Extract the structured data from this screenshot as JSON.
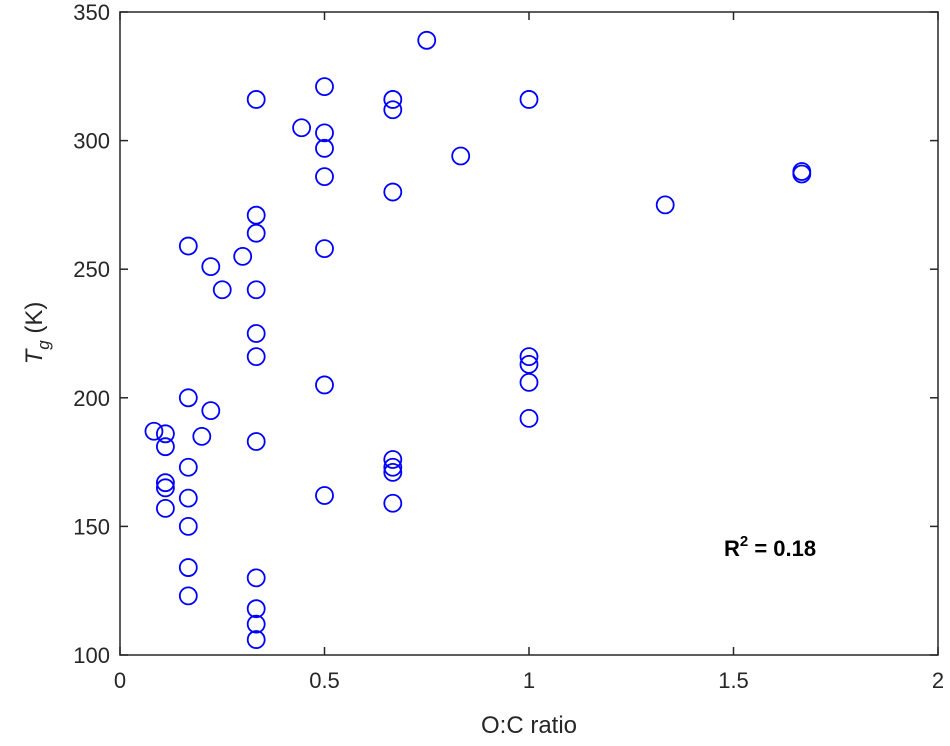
{
  "chart_data": {
    "type": "scatter",
    "title": "",
    "xlabel": "O:C ratio",
    "ylabel": {
      "main": "T",
      "sub": "g",
      "unit": " (K)"
    },
    "xlim": [
      0,
      2
    ],
    "ylim": [
      100,
      350
    ],
    "xticks": [
      0,
      0.5,
      1,
      1.5,
      2
    ],
    "xtick_labels": [
      "0",
      "0.5",
      "1",
      "1.5",
      "2"
    ],
    "yticks": [
      100,
      150,
      200,
      250,
      300,
      350
    ],
    "ytick_labels": [
      "100",
      "150",
      "200",
      "250",
      "300",
      "350"
    ],
    "grid": false,
    "legend": "none",
    "marker": "open-circle",
    "marker_color": "#0000ff",
    "annotation": {
      "base": "R",
      "sup": "2",
      "rest": " = 0.18"
    },
    "series": [
      {
        "points": [
          [
            0.083,
            187
          ],
          [
            0.111,
            186
          ],
          [
            0.111,
            181
          ],
          [
            0.111,
            167
          ],
          [
            0.111,
            165
          ],
          [
            0.111,
            157
          ],
          [
            0.167,
            259
          ],
          [
            0.167,
            200
          ],
          [
            0.167,
            173
          ],
          [
            0.167,
            161
          ],
          [
            0.167,
            150
          ],
          [
            0.167,
            134
          ],
          [
            0.167,
            123
          ],
          [
            0.2,
            185
          ],
          [
            0.222,
            195
          ],
          [
            0.222,
            251
          ],
          [
            0.25,
            242
          ],
          [
            0.3,
            255
          ],
          [
            0.333,
            316
          ],
          [
            0.333,
            271
          ],
          [
            0.333,
            264
          ],
          [
            0.333,
            242
          ],
          [
            0.333,
            225
          ],
          [
            0.333,
            216
          ],
          [
            0.333,
            183
          ],
          [
            0.333,
            130
          ],
          [
            0.333,
            118
          ],
          [
            0.333,
            112
          ],
          [
            0.333,
            106
          ],
          [
            0.444,
            305
          ],
          [
            0.5,
            321
          ],
          [
            0.5,
            303
          ],
          [
            0.5,
            297
          ],
          [
            0.5,
            286
          ],
          [
            0.5,
            258
          ],
          [
            0.5,
            205
          ],
          [
            0.5,
            162
          ],
          [
            0.667,
            316
          ],
          [
            0.667,
            312
          ],
          [
            0.667,
            280
          ],
          [
            0.667,
            176
          ],
          [
            0.667,
            173
          ],
          [
            0.667,
            171
          ],
          [
            0.667,
            159
          ],
          [
            0.75,
            339
          ],
          [
            0.833,
            294
          ],
          [
            1.0,
            316
          ],
          [
            1.0,
            216
          ],
          [
            1.0,
            213
          ],
          [
            1.0,
            206
          ],
          [
            1.0,
            192
          ],
          [
            1.333,
            275
          ],
          [
            1.667,
            288
          ],
          [
            1.667,
            287
          ]
        ]
      }
    ]
  }
}
